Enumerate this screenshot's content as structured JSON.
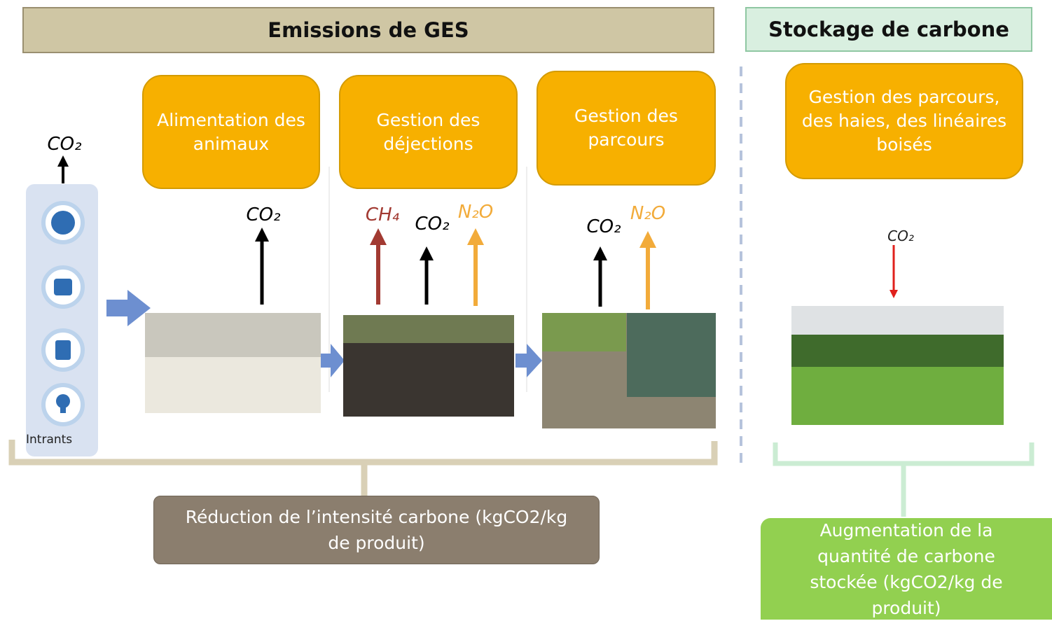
{
  "header": {
    "emissions": "Emissions de GES",
    "storage": "Stockage de carbone"
  },
  "intrants": {
    "gas": "CO₂",
    "label": "Intrants"
  },
  "stages": [
    {
      "label": "Alimentation des animaux",
      "gases": [
        "CO₂"
      ]
    },
    {
      "label": "Gestion des déjections",
      "gases": [
        "CH₄",
        "CO₂",
        "N₂O"
      ]
    },
    {
      "label": "Gestion des parcours",
      "gases": [
        "CO₂",
        "N₂O"
      ]
    }
  ],
  "storage_stage": {
    "label": "Gestion des parcours, des haies, des linéaires boisés",
    "gas": "CO₂"
  },
  "outcomes": {
    "reduction": "Réduction de l’intensité carbone (kgCO2/kg de produit)",
    "increase": "Augmentation de la quantité de carbone stockée (kgCO2/kg de produit)"
  }
}
